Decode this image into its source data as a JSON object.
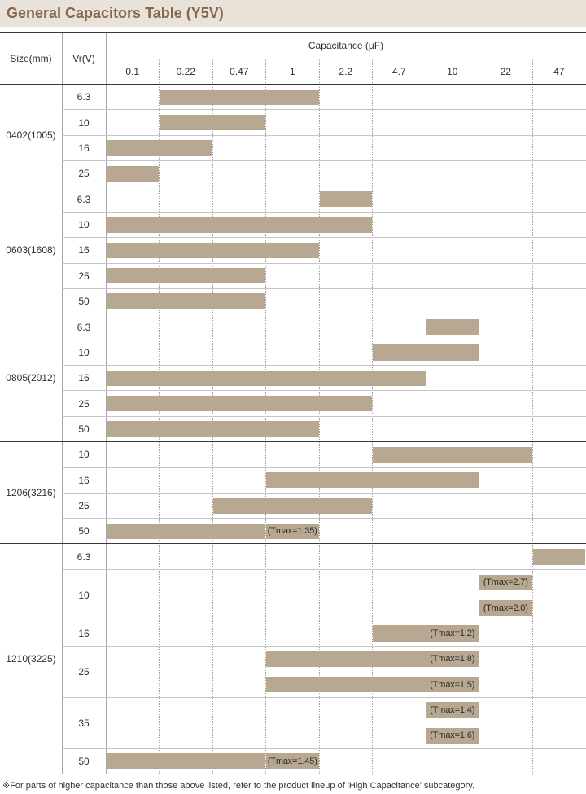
{
  "colors": {
    "title_band": "#e9e2d8",
    "title_text": "#85694f",
    "bar": "#b8a892",
    "note_text": "#2a2a2a"
  },
  "chart_data": {
    "type": "bar",
    "title": "General Capacitors Table (Y5V)",
    "xlabel": "Capacitance (μF)",
    "row_headers": {
      "size": "Size(mm)",
      "vr": "Vr(V)"
    },
    "grid": true,
    "categories": [
      0.1,
      0.22,
      0.47,
      1,
      2.2,
      4.7,
      10,
      22,
      47
    ],
    "groups": [
      {
        "size": "0402(1005)",
        "rows": [
          {
            "vr": "6.3",
            "lines": [
              {
                "from": 0.22,
                "to": 1
              }
            ]
          },
          {
            "vr": "10",
            "lines": [
              {
                "from": 0.22,
                "to": 0.47
              }
            ]
          },
          {
            "vr": "16",
            "lines": [
              {
                "from": 0.1,
                "to": 0.22
              }
            ]
          },
          {
            "vr": "25",
            "lines": [
              {
                "from": 0.1,
                "to": 0.1
              }
            ]
          }
        ]
      },
      {
        "size": "0603(1608)",
        "rows": [
          {
            "vr": "6.3",
            "lines": [
              {
                "from": 2.2,
                "to": 2.2
              }
            ]
          },
          {
            "vr": "10",
            "lines": [
              {
                "from": 0.1,
                "to": 2.2
              }
            ]
          },
          {
            "vr": "16",
            "lines": [
              {
                "from": 0.1,
                "to": 1
              }
            ]
          },
          {
            "vr": "25",
            "lines": [
              {
                "from": 0.1,
                "to": 0.47
              }
            ]
          },
          {
            "vr": "50",
            "lines": [
              {
                "from": 0.1,
                "to": 0.47
              }
            ]
          }
        ]
      },
      {
        "size": "0805(2012)",
        "rows": [
          {
            "vr": "6.3",
            "lines": [
              {
                "from": 10,
                "to": 10
              }
            ]
          },
          {
            "vr": "10",
            "lines": [
              {
                "from": 4.7,
                "to": 10
              }
            ]
          },
          {
            "vr": "16",
            "lines": [
              {
                "from": 0.1,
                "to": 4.7
              }
            ]
          },
          {
            "vr": "25",
            "lines": [
              {
                "from": 0.1,
                "to": 2.2
              }
            ]
          },
          {
            "vr": "50",
            "lines": [
              {
                "from": 0.1,
                "to": 1
              }
            ]
          }
        ]
      },
      {
        "size": "1206(3216)",
        "rows": [
          {
            "vr": "10",
            "lines": [
              {
                "from": 4.7,
                "to": 22
              }
            ]
          },
          {
            "vr": "16",
            "lines": [
              {
                "from": 1,
                "to": 10
              }
            ]
          },
          {
            "vr": "25",
            "lines": [
              {
                "from": 0.47,
                "to": 2.2
              }
            ]
          },
          {
            "vr": "50",
            "lines": [
              {
                "from": 0.1,
                "to": 0.47,
                "note": {
                  "at": 1,
                  "text": "(Tmax=1.35)"
                }
              }
            ]
          }
        ]
      },
      {
        "size": "1210(3225)",
        "rows": [
          {
            "vr": "6.3",
            "lines": [
              {
                "from": 47,
                "to": 47
              }
            ]
          },
          {
            "vr": "10",
            "lines": [
              {
                "note": {
                  "at": 22,
                  "text": "(Tmax=2.7)"
                }
              },
              {
                "note": {
                  "at": 22,
                  "text": "(Tmax=2.0)"
                }
              }
            ]
          },
          {
            "vr": "16",
            "lines": [
              {
                "from": 4.7,
                "to": 4.7,
                "note": {
                  "at": 10,
                  "text": "(Tmax=1.2)"
                }
              }
            ]
          },
          {
            "vr": "25",
            "lines": [
              {
                "from": 1,
                "to": 4.7,
                "note": {
                  "at": 10,
                  "text": "(Tmax=1.8)"
                }
              },
              {
                "from": 1,
                "to": 4.7,
                "note": {
                  "at": 10,
                  "text": "(Tmax=1.5)"
                }
              }
            ]
          },
          {
            "vr": "35",
            "lines": [
              {
                "note": {
                  "at": 10,
                  "text": "(Tmax=1.4)"
                }
              },
              {
                "note": {
                  "at": 10,
                  "text": "(Tmax=1.6)"
                }
              }
            ]
          },
          {
            "vr": "50",
            "lines": [
              {
                "from": 0.1,
                "to": 0.47,
                "note": {
                  "at": 1,
                  "text": "(Tmax=1.45)"
                }
              }
            ]
          }
        ]
      }
    ]
  },
  "footnote": "※For parts of higher capacitance than those above listed, refer to the product lineup of 'High Capacitance' subcategory."
}
